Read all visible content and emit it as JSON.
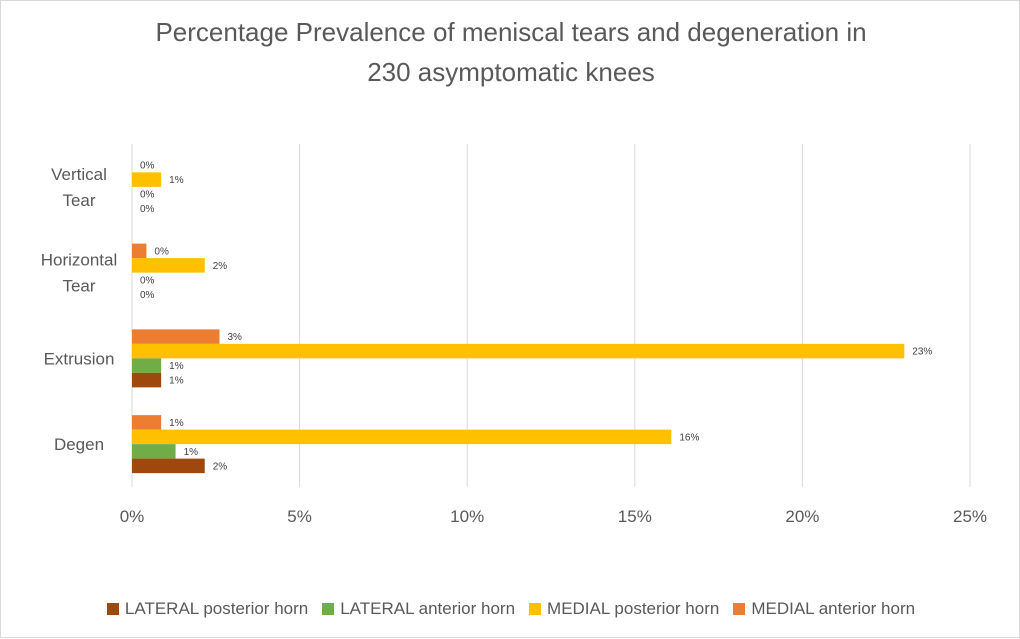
{
  "chart_data": {
    "type": "bar",
    "orientation": "horizontal",
    "title_lines": [
      "Percentage Prevalence of meniscal tears and degeneration in",
      "230 asymptomatic knees"
    ],
    "categories": [
      [
        "Vertical",
        "Tear"
      ],
      [
        "Horizontal",
        "Tear"
      ],
      [
        "Extrusion"
      ],
      [
        "Degen"
      ]
    ],
    "series": [
      {
        "name": "LATERAL posterior horn",
        "color": "#9e480e",
        "values": [
          0,
          0,
          0.87,
          2.17
        ],
        "labels": [
          "0%",
          "0%",
          "1%",
          "2%"
        ]
      },
      {
        "name": "LATERAL anterior horn",
        "color": "#70ad47",
        "values": [
          0,
          0,
          0.87,
          1.3
        ],
        "labels": [
          "0%",
          "0%",
          "1%",
          "1%"
        ]
      },
      {
        "name": "MEDIAL posterior horn",
        "color": "#ffc000",
        "values": [
          0.87,
          2.17,
          23.04,
          16.09
        ],
        "labels": [
          "1%",
          "2%",
          "23%",
          "16%"
        ]
      },
      {
        "name": "MEDIAL anterior horn",
        "color": "#ed7d31",
        "values": [
          0,
          0.43,
          2.61,
          0.87
        ],
        "labels": [
          "0%",
          "0%",
          "3%",
          "1%"
        ]
      }
    ],
    "xlim": [
      0,
      25
    ],
    "xticks": [
      "0%",
      "5%",
      "10%",
      "15%",
      "20%",
      "25%"
    ],
    "grid": true,
    "legend_position": "bottom"
  }
}
